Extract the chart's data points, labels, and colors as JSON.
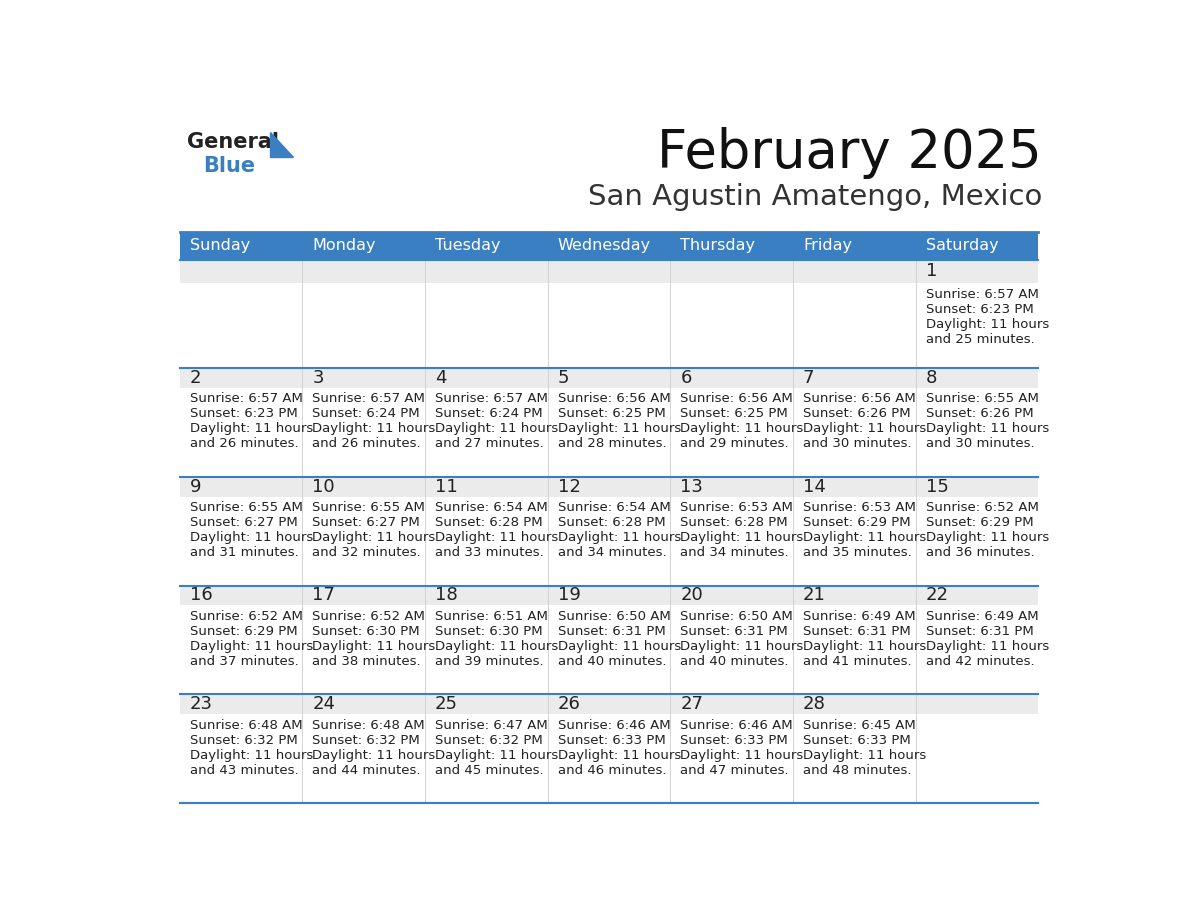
{
  "title": "February 2025",
  "subtitle": "San Agustin Amatengo, Mexico",
  "header_bg_color": "#3a7fc1",
  "header_text_color": "#ffffff",
  "row1_bg_color": "#e8e8e8",
  "cell_bg_color": "#ffffff",
  "cell_border_color": "#3a7fc1",
  "day_number_color": "#222222",
  "info_text_color": "#222222",
  "days_of_week": [
    "Sunday",
    "Monday",
    "Tuesday",
    "Wednesday",
    "Thursday",
    "Friday",
    "Saturday"
  ],
  "calendar_data": [
    [
      null,
      null,
      null,
      null,
      null,
      null,
      {
        "day": 1,
        "sunrise": "6:57 AM",
        "sunset": "6:23 PM",
        "daylight": "11 hours",
        "daylight2": "and 25 minutes."
      }
    ],
    [
      {
        "day": 2,
        "sunrise": "6:57 AM",
        "sunset": "6:23 PM",
        "daylight": "11 hours",
        "daylight2": "and 26 minutes."
      },
      {
        "day": 3,
        "sunrise": "6:57 AM",
        "sunset": "6:24 PM",
        "daylight": "11 hours",
        "daylight2": "and 26 minutes."
      },
      {
        "day": 4,
        "sunrise": "6:57 AM",
        "sunset": "6:24 PM",
        "daylight": "11 hours",
        "daylight2": "and 27 minutes."
      },
      {
        "day": 5,
        "sunrise": "6:56 AM",
        "sunset": "6:25 PM",
        "daylight": "11 hours",
        "daylight2": "and 28 minutes."
      },
      {
        "day": 6,
        "sunrise": "6:56 AM",
        "sunset": "6:25 PM",
        "daylight": "11 hours",
        "daylight2": "and 29 minutes."
      },
      {
        "day": 7,
        "sunrise": "6:56 AM",
        "sunset": "6:26 PM",
        "daylight": "11 hours",
        "daylight2": "and 30 minutes."
      },
      {
        "day": 8,
        "sunrise": "6:55 AM",
        "sunset": "6:26 PM",
        "daylight": "11 hours",
        "daylight2": "and 30 minutes."
      }
    ],
    [
      {
        "day": 9,
        "sunrise": "6:55 AM",
        "sunset": "6:27 PM",
        "daylight": "11 hours",
        "daylight2": "and 31 minutes."
      },
      {
        "day": 10,
        "sunrise": "6:55 AM",
        "sunset": "6:27 PM",
        "daylight": "11 hours",
        "daylight2": "and 32 minutes."
      },
      {
        "day": 11,
        "sunrise": "6:54 AM",
        "sunset": "6:28 PM",
        "daylight": "11 hours",
        "daylight2": "and 33 minutes."
      },
      {
        "day": 12,
        "sunrise": "6:54 AM",
        "sunset": "6:28 PM",
        "daylight": "11 hours",
        "daylight2": "and 34 minutes."
      },
      {
        "day": 13,
        "sunrise": "6:53 AM",
        "sunset": "6:28 PM",
        "daylight": "11 hours",
        "daylight2": "and 34 minutes."
      },
      {
        "day": 14,
        "sunrise": "6:53 AM",
        "sunset": "6:29 PM",
        "daylight": "11 hours",
        "daylight2": "and 35 minutes."
      },
      {
        "day": 15,
        "sunrise": "6:52 AM",
        "sunset": "6:29 PM",
        "daylight": "11 hours",
        "daylight2": "and 36 minutes."
      }
    ],
    [
      {
        "day": 16,
        "sunrise": "6:52 AM",
        "sunset": "6:29 PM",
        "daylight": "11 hours",
        "daylight2": "and 37 minutes."
      },
      {
        "day": 17,
        "sunrise": "6:52 AM",
        "sunset": "6:30 PM",
        "daylight": "11 hours",
        "daylight2": "and 38 minutes."
      },
      {
        "day": 18,
        "sunrise": "6:51 AM",
        "sunset": "6:30 PM",
        "daylight": "11 hours",
        "daylight2": "and 39 minutes."
      },
      {
        "day": 19,
        "sunrise": "6:50 AM",
        "sunset": "6:31 PM",
        "daylight": "11 hours",
        "daylight2": "and 40 minutes."
      },
      {
        "day": 20,
        "sunrise": "6:50 AM",
        "sunset": "6:31 PM",
        "daylight": "11 hours",
        "daylight2": "and 40 minutes."
      },
      {
        "day": 21,
        "sunrise": "6:49 AM",
        "sunset": "6:31 PM",
        "daylight": "11 hours",
        "daylight2": "and 41 minutes."
      },
      {
        "day": 22,
        "sunrise": "6:49 AM",
        "sunset": "6:31 PM",
        "daylight": "11 hours",
        "daylight2": "and 42 minutes."
      }
    ],
    [
      {
        "day": 23,
        "sunrise": "6:48 AM",
        "sunset": "6:32 PM",
        "daylight": "11 hours",
        "daylight2": "and 43 minutes."
      },
      {
        "day": 24,
        "sunrise": "6:48 AM",
        "sunset": "6:32 PM",
        "daylight": "11 hours",
        "daylight2": "and 44 minutes."
      },
      {
        "day": 25,
        "sunrise": "6:47 AM",
        "sunset": "6:32 PM",
        "daylight": "11 hours",
        "daylight2": "and 45 minutes."
      },
      {
        "day": 26,
        "sunrise": "6:46 AM",
        "sunset": "6:33 PM",
        "daylight": "11 hours",
        "daylight2": "and 46 minutes."
      },
      {
        "day": 27,
        "sunrise": "6:46 AM",
        "sunset": "6:33 PM",
        "daylight": "11 hours",
        "daylight2": "and 47 minutes."
      },
      {
        "day": 28,
        "sunrise": "6:45 AM",
        "sunset": "6:33 PM",
        "daylight": "11 hours",
        "daylight2": "and 48 minutes."
      },
      null
    ]
  ],
  "logo_general_color": "#222222",
  "logo_blue_color": "#3a7fc1",
  "title_fontsize": 38,
  "subtitle_fontsize": 21,
  "header_fontsize": 11.5,
  "day_number_fontsize": 13,
  "info_fontsize": 9.5
}
